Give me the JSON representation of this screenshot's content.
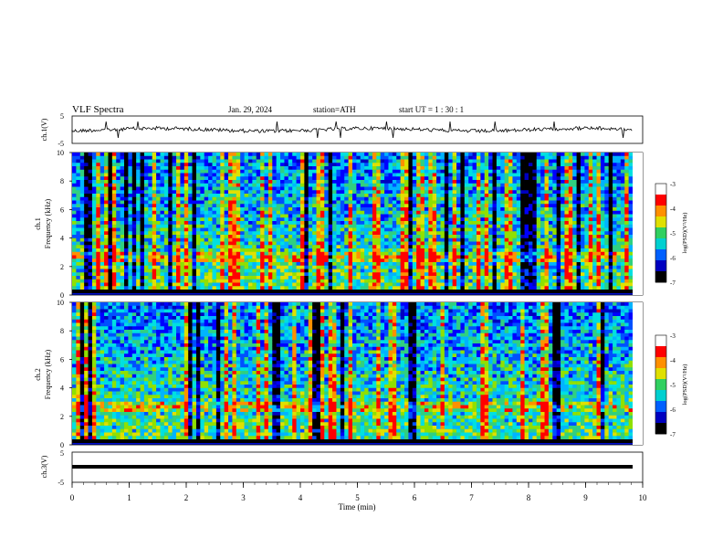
{
  "header": {
    "title": "VLF  Spectra",
    "date": "Jan. 29, 2024",
    "station": "station=ATH",
    "start": "start  UT  =    1  : 30 : 1"
  },
  "chart_data": [
    {
      "type": "line",
      "panel": "ch1-waveform",
      "ylabel": "ch.1(V)",
      "ylim": [
        -5,
        5
      ],
      "y_ticks": [
        "5",
        "-5"
      ],
      "xlim": [
        0,
        10
      ],
      "series": [
        {
          "values": []
        }
      ]
    },
    {
      "type": "heatmap",
      "panel": "ch1-spectrogram",
      "ylabel_channel": "ch.1",
      "ylabel": "Frequency  (kHz)",
      "ylim": [
        0,
        10
      ],
      "y_ticks": [
        "0",
        "2",
        "4",
        "6",
        "8",
        "10"
      ],
      "xlim": [
        0,
        10
      ],
      "colorbar": {
        "label": "log(PSD)(V²/Hz)",
        "range": [
          -7,
          -3
        ],
        "ticks": [
          "-3",
          "-4",
          "-5",
          "-6",
          "-7"
        ]
      }
    },
    {
      "type": "heatmap",
      "panel": "ch2-spectrogram",
      "ylabel_channel": "ch.2",
      "ylabel": "Frequency  (kHz)",
      "ylim": [
        0,
        10
      ],
      "y_ticks": [
        "0",
        "2",
        "4",
        "6",
        "8",
        "10"
      ],
      "xlim": [
        0,
        10
      ],
      "colorbar": {
        "label": "log(PSD)(V²/Hz)",
        "range": [
          -7,
          -3
        ],
        "ticks": [
          "-3",
          "-4",
          "-5",
          "-6",
          "-7"
        ]
      }
    },
    {
      "type": "line",
      "panel": "ch3-waveform",
      "ylabel": "ch.3(V)",
      "ylim": [
        -5,
        5
      ],
      "y_ticks": [
        "5",
        "-5"
      ],
      "xlim": [
        0,
        10
      ],
      "xlabel": "Time  (min)",
      "x_ticks": [
        "0",
        "1",
        "2",
        "3",
        "4",
        "5",
        "6",
        "7",
        "8",
        "9",
        "10"
      ]
    }
  ],
  "palette": {
    "spectrum": [
      "#000000",
      "#0000c0",
      "#0000ff",
      "#0050ff",
      "#00b4ff",
      "#00e0e0",
      "#30d080",
      "#90e000",
      "#e0e000",
      "#ff9000",
      "#ff0000",
      "#ffffff"
    ]
  }
}
